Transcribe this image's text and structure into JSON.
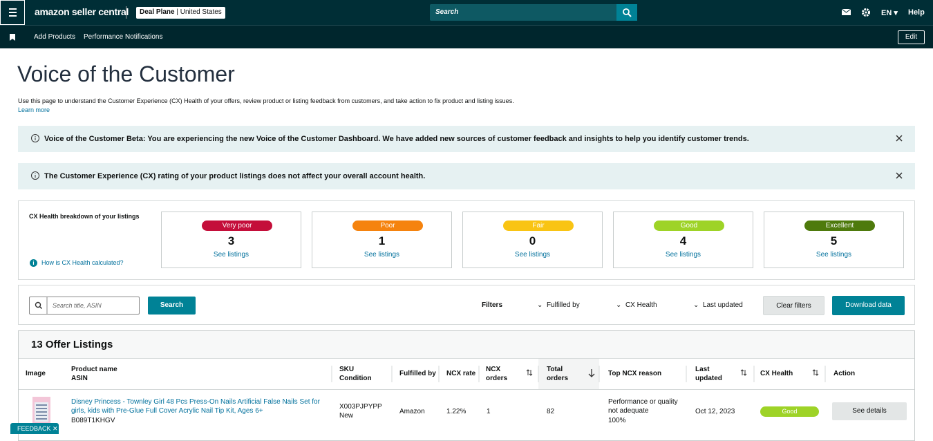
{
  "nav": {
    "brand": "amazon seller central",
    "store": "Deal Plane",
    "region": "United States",
    "search_placeholder": "Search",
    "lang": "EN",
    "help": "Help"
  },
  "subnav": {
    "links": [
      "Add Products",
      "Performance Notifications"
    ],
    "edit": "Edit"
  },
  "header": {
    "title": "Voice of the Customer",
    "description": "Use this page to understand the Customer Experience (CX) Health of your offers, review product or listing feedback from customers, and take action to fix product and listing issues.",
    "learn_more": "Learn more"
  },
  "alerts": [
    "Voice of the Customer Beta: You are experiencing the new Voice of the Customer Dashboard. We have added new sources of customer feedback and insights to help you identify customer trends.",
    "The Customer Experience (CX) rating of your product listings does not affect your overall account health."
  ],
  "cx_health": {
    "title": "CX Health breakdown of your listings",
    "help_link": "How is CX Health calculated?",
    "cards": [
      {
        "label": "Very poor",
        "count": 3,
        "link": "See listings"
      },
      {
        "label": "Poor",
        "count": 1,
        "link": "See listings"
      },
      {
        "label": "Fair",
        "count": 0,
        "link": "See listings"
      },
      {
        "label": "Good",
        "count": 4,
        "link": "See listings"
      },
      {
        "label": "Excellent",
        "count": 5,
        "link": "See listings"
      }
    ]
  },
  "toolbar": {
    "search_placeholder": "Search title, ASIN",
    "search_button": "Search",
    "filters_label": "Filters",
    "filters": [
      "Fulfilled by",
      "CX Health",
      "Last updated"
    ],
    "clear": "Clear filters",
    "download": "Download data"
  },
  "listings": {
    "title": "13 Offer Listings",
    "columns": [
      [
        "Image"
      ],
      [
        "Product name",
        "ASIN"
      ],
      [
        "SKU",
        "Condition"
      ],
      [
        "Fulfilled by"
      ],
      [
        "NCX rate"
      ],
      [
        "NCX",
        "orders"
      ],
      [
        "Total",
        "orders"
      ],
      [
        "Top NCX reason"
      ],
      [
        "Last",
        "updated"
      ],
      [
        "CX Health"
      ],
      [
        "Action"
      ]
    ],
    "rows": [
      {
        "product_name": "Disney Princess - Townley Girl 48 Pcs Press-On Nails Artificial False Nails Set for girls, kids with Pre-Glue Full Cover Acrylic Nail Tip Kit, Ages 6+",
        "asin": "B089T1KHGV",
        "sku": "X003PJPYPP",
        "condition": "New",
        "fulfilled_by": "Amazon",
        "ncx_rate": "1.22%",
        "ncx_orders": 1,
        "total_orders": 82,
        "top_ncx_reason": "Performance or quality not adequate",
        "top_ncx_share": "100%",
        "last_updated": "Oct 12, 2023",
        "cx_health": "Good",
        "action": "See details"
      }
    ]
  },
  "feedback": "FEEDBACK"
}
